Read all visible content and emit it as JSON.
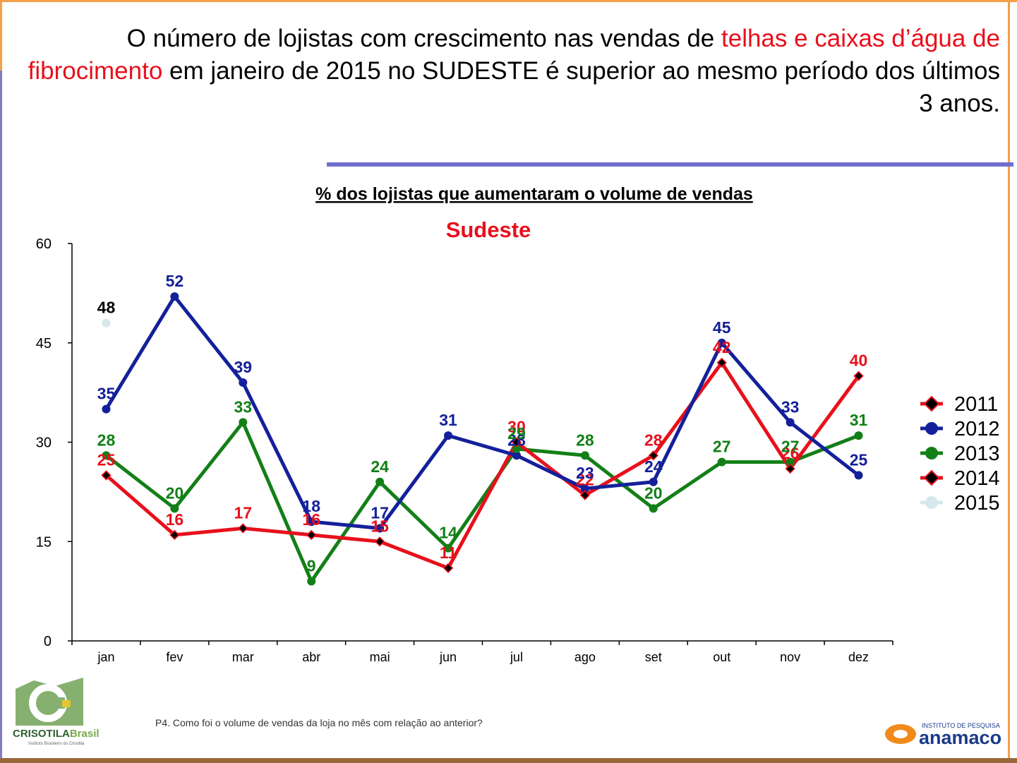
{
  "headline": {
    "part1": "O número de lojistas com crescimento nas vendas de ",
    "highlight": "telhas e caixas d’água de fibrocimento",
    "part2": " em janeiro de 2015 no SUDESTE é superior ao mesmo período dos últimos 3 anos."
  },
  "question": "P4. Como foi o volume de vendas da loja no mês com relação ao anterior?",
  "logos": {
    "left_text": "CRISOTILABrasil",
    "left_sub": "Instituto Brasileiro do Crisotila",
    "right_sup": "INSTITUTO DE PESQUISA",
    "right_text": "anamaco"
  },
  "chart_data": {
    "type": "line",
    "title": "% dos lojistas que aumentaram o volume de vendas",
    "subtitle": "Sudeste",
    "categories": [
      "jan",
      "fev",
      "mar",
      "abr",
      "mai",
      "jun",
      "jul",
      "ago",
      "set",
      "out",
      "nov",
      "dez"
    ],
    "ylim": [
      0,
      60
    ],
    "yticks": [
      0,
      15,
      30,
      45,
      60
    ],
    "grid": false,
    "legend_position": "right",
    "series": [
      {
        "name": "2011",
        "color": "#e8101c",
        "marker": "diamond",
        "labels": true,
        "values": [
          25,
          16,
          17,
          16,
          15,
          11,
          30,
          22,
          28,
          42,
          26,
          40
        ]
      },
      {
        "name": "2012",
        "color": "#14209a",
        "marker": "circle",
        "labels": true,
        "values": [
          35,
          52,
          39,
          18,
          17,
          31,
          28,
          23,
          24,
          45,
          33,
          25
        ]
      },
      {
        "name": "2013",
        "color": "#137f17",
        "marker": "circle",
        "labels": true,
        "values": [
          28,
          20,
          33,
          9,
          24,
          14,
          29,
          28,
          20,
          27,
          27,
          31
        ]
      },
      {
        "name": "2014",
        "color": "#e8101c",
        "marker": "diamond",
        "labels": false,
        "values": [
          25,
          16,
          17,
          16,
          15,
          11,
          30,
          22,
          28,
          42,
          26,
          40
        ]
      },
      {
        "name": "2015",
        "color": "#d5e8ea",
        "marker": "circle",
        "labels": true,
        "label_color": "#000000",
        "values": [
          48,
          null,
          null,
          null,
          null,
          null,
          null,
          null,
          null,
          null,
          null,
          null
        ]
      }
    ]
  }
}
